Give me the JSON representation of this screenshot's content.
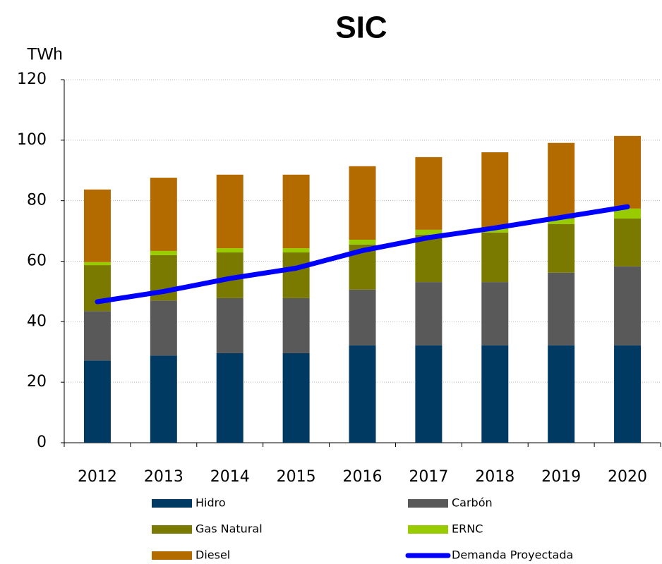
{
  "chart_data": {
    "type": "bar",
    "stacked": true,
    "title": "SIC",
    "y_axis_label": "TWh",
    "categories": [
      "2012",
      "2013",
      "2014",
      "2015",
      "2016",
      "2017",
      "2018",
      "2019",
      "2020"
    ],
    "series": [
      {
        "name": "Hidro",
        "color": "#003a63",
        "values": [
          27.2,
          28.8,
          29.6,
          29.6,
          32.2,
          32.2,
          32.2,
          32.2,
          32.2
        ]
      },
      {
        "name": "Carbón",
        "color": "#595959",
        "values": [
          16.3,
          18.2,
          18.2,
          18.2,
          18.4,
          20.9,
          20.9,
          24,
          26.1
        ]
      },
      {
        "name": "Gas Natural",
        "color": "#7a7a00",
        "values": [
          15.2,
          15,
          15.1,
          15.1,
          14.9,
          15.7,
          16.4,
          16.1,
          15.8
        ]
      },
      {
        "name": "ERNC",
        "color": "#99cc00",
        "values": [
          1,
          1.4,
          1.4,
          1.4,
          1.6,
          1.6,
          1.6,
          1.8,
          3.3
        ]
      },
      {
        "name": "Diesel",
        "color": "#b36b00",
        "values": [
          24,
          24.2,
          24.3,
          24.3,
          24.3,
          24,
          24.9,
          25,
          24
        ]
      },
      {
        "name": "Demanda Proyectada",
        "color": "#0000ff",
        "type": "line",
        "values": [
          46.6,
          50,
          54.3,
          57.7,
          63.5,
          67.8,
          71,
          74.5,
          78
        ]
      }
    ],
    "ylim": [
      0,
      120
    ],
    "yticks": [
      0,
      20,
      40,
      60,
      80,
      100,
      120
    ],
    "grid": true,
    "legend": "bottom"
  }
}
